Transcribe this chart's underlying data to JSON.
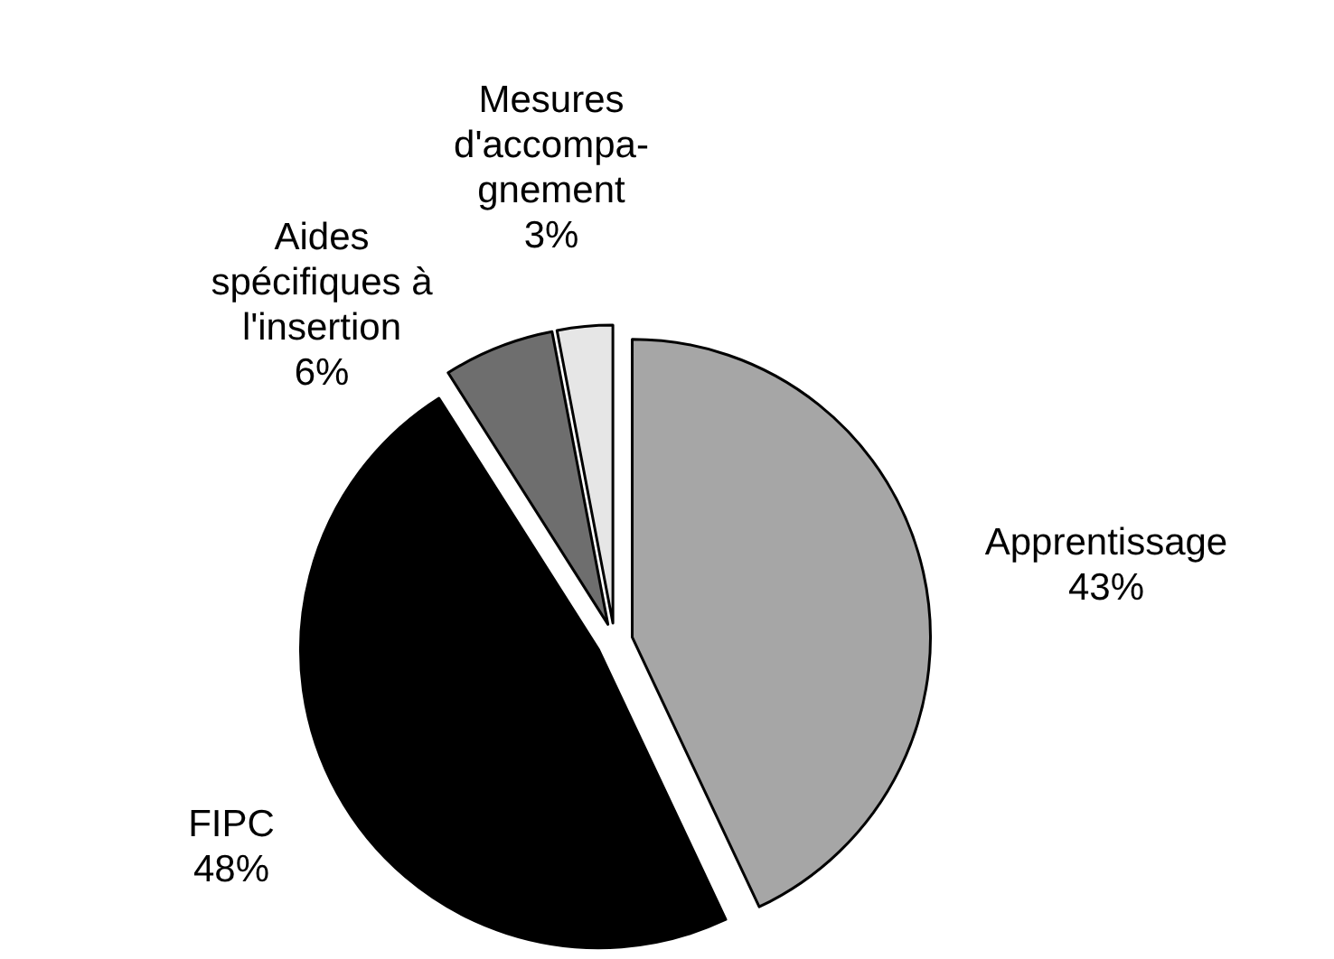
{
  "chart_data": {
    "type": "pie",
    "categories": [
      "Apprentissage",
      "FIPC",
      "Aides spécifiques à l'insertion",
      "Mesures d'accompa-gnement"
    ],
    "values": [
      43,
      48,
      6,
      3
    ],
    "value_labels": [
      "43%",
      "48%",
      "6%",
      "3%"
    ],
    "colors": [
      "#a6a6a6",
      "#000000",
      "#6e6e6e",
      "#e6e6e6"
    ]
  }
}
